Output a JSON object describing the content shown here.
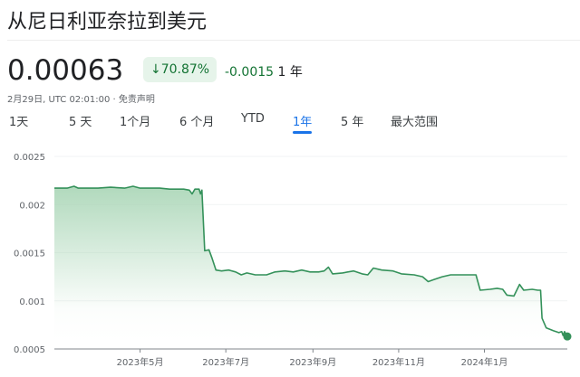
{
  "header": {
    "title": "从尼日利亚奈拉到美元",
    "price": "0.00063",
    "change_pct": "↓70.87%",
    "change_abs": "-0.0015",
    "change_period": "1 年",
    "meta": "2月29日, UTC 02:01:00 · 免责声明"
  },
  "tabs": [
    {
      "label": "1天"
    },
    {
      "label": "5 天"
    },
    {
      "label": "1个月"
    },
    {
      "label": "6 个月"
    },
    {
      "label": "YTD"
    },
    {
      "label": "1年",
      "active": true
    },
    {
      "label": "5 年"
    },
    {
      "label": "最大范围"
    }
  ],
  "colors": {
    "line": "#34915a",
    "fill": "#a8d5b5",
    "accent": "#1a73e8",
    "positive_badge": "#e6f4ea"
  },
  "chart_data": {
    "type": "area",
    "ylim": [
      0.0005,
      0.0025
    ],
    "yticks": [
      "0.0025",
      "0.002",
      "0.0015",
      "0.001",
      "0.0005"
    ],
    "ytick_values": [
      0.0025,
      0.002,
      0.0015,
      0.001,
      0.0005
    ],
    "xlim": [
      "2023-03-01",
      "2024-02-29"
    ],
    "xticks": [
      {
        "date": "2023-05-01",
        "label": "2023年5月"
      },
      {
        "date": "2023-07-01",
        "label": "2023年7月"
      },
      {
        "date": "2023-09-01",
        "label": "2023年9月"
      },
      {
        "date": "2023-11-01",
        "label": "2023年11月"
      },
      {
        "date": "2024-01-01",
        "label": "2024年1月"
      }
    ],
    "grid": true,
    "points": [
      [
        "2023-03-01",
        0.00217
      ],
      [
        "2023-03-10",
        0.00217
      ],
      [
        "2023-03-15",
        0.00219
      ],
      [
        "2023-03-18",
        0.00217
      ],
      [
        "2023-04-01",
        0.00217
      ],
      [
        "2023-04-10",
        0.00218
      ],
      [
        "2023-04-20",
        0.00217
      ],
      [
        "2023-04-26",
        0.00219
      ],
      [
        "2023-05-01",
        0.00217
      ],
      [
        "2023-05-15",
        0.00217
      ],
      [
        "2023-05-22",
        0.00216
      ],
      [
        "2023-06-01",
        0.00216
      ],
      [
        "2023-06-05",
        0.00215
      ],
      [
        "2023-06-07",
        0.00211
      ],
      [
        "2023-06-09",
        0.00216
      ],
      [
        "2023-06-12",
        0.00216
      ],
      [
        "2023-06-13",
        0.00211
      ],
      [
        "2023-06-14",
        0.00215
      ],
      [
        "2023-06-16",
        0.00152
      ],
      [
        "2023-06-19",
        0.00153
      ],
      [
        "2023-06-21",
        0.00145
      ],
      [
        "2023-06-24",
        0.00132
      ],
      [
        "2023-06-28",
        0.00131
      ],
      [
        "2023-07-03",
        0.00132
      ],
      [
        "2023-07-08",
        0.0013
      ],
      [
        "2023-07-12",
        0.00127
      ],
      [
        "2023-07-16",
        0.00129
      ],
      [
        "2023-07-22",
        0.00127
      ],
      [
        "2023-07-30",
        0.00127
      ],
      [
        "2023-08-05",
        0.0013
      ],
      [
        "2023-08-12",
        0.00131
      ],
      [
        "2023-08-18",
        0.0013
      ],
      [
        "2023-08-24",
        0.00132
      ],
      [
        "2023-08-30",
        0.0013
      ],
      [
        "2023-09-05",
        0.0013
      ],
      [
        "2023-09-09",
        0.00131
      ],
      [
        "2023-09-12",
        0.00135
      ],
      [
        "2023-09-15",
        0.00128
      ],
      [
        "2023-09-22",
        0.00129
      ],
      [
        "2023-09-30",
        0.00131
      ],
      [
        "2023-10-06",
        0.00128
      ],
      [
        "2023-10-10",
        0.00127
      ],
      [
        "2023-10-14",
        0.00134
      ],
      [
        "2023-10-20",
        0.00132
      ],
      [
        "2023-10-28",
        0.00131
      ],
      [
        "2023-11-03",
        0.00128
      ],
      [
        "2023-11-12",
        0.00127
      ],
      [
        "2023-11-18",
        0.00125
      ],
      [
        "2023-11-22",
        0.0012
      ],
      [
        "2023-11-26",
        0.00122
      ],
      [
        "2023-12-02",
        0.00125
      ],
      [
        "2023-12-08",
        0.00127
      ],
      [
        "2023-12-18",
        0.00127
      ],
      [
        "2023-12-26",
        0.00127
      ],
      [
        "2023-12-29",
        0.00111
      ],
      [
        "2024-01-05",
        0.00112
      ],
      [
        "2024-01-10",
        0.00113
      ],
      [
        "2024-01-14",
        0.00112
      ],
      [
        "2024-01-17",
        0.00106
      ],
      [
        "2024-01-22",
        0.00105
      ],
      [
        "2024-01-26",
        0.00117
      ],
      [
        "2024-01-29",
        0.00111
      ],
      [
        "2024-02-04",
        0.00112
      ],
      [
        "2024-02-08",
        0.00111
      ],
      [
        "2024-02-10",
        0.00111
      ],
      [
        "2024-02-11",
        0.00082
      ],
      [
        "2024-02-14",
        0.00072
      ],
      [
        "2024-02-19",
        0.00069
      ],
      [
        "2024-02-23",
        0.00067
      ],
      [
        "2024-02-25",
        0.00068
      ],
      [
        "2024-02-26",
        0.00064
      ],
      [
        "2024-02-27",
        0.00068
      ],
      [
        "2024-02-29",
        0.00063
      ]
    ]
  }
}
